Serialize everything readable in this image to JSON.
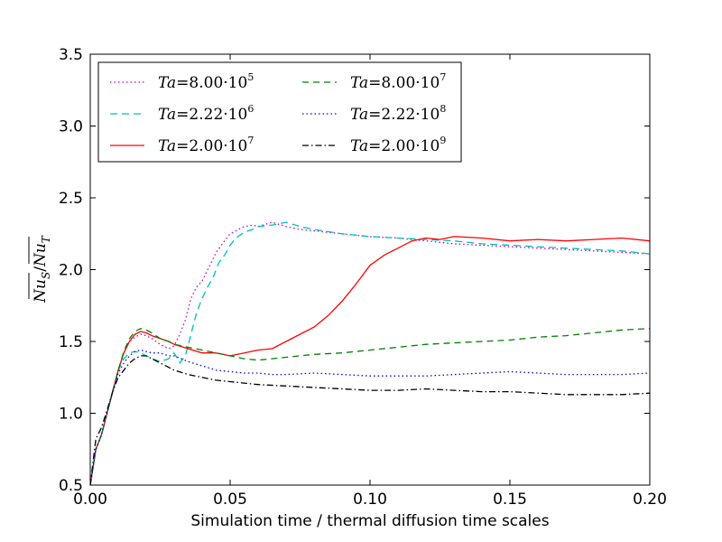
{
  "chart_data": {
    "type": "line",
    "title": "",
    "xlabel": "Simulation time / thermal diffusion time scales",
    "ylabel": "Nu_S / Nu_T",
    "ylabel_parts": {
      "num": "Nu",
      "num_sub": "S",
      "sep": "/",
      "den": "Nu",
      "den_sub": "T"
    },
    "xlim": [
      0.0,
      0.2
    ],
    "ylim": [
      0.5,
      3.5
    ],
    "xticks": [
      0.0,
      0.05,
      0.1,
      0.15,
      0.2
    ],
    "xtick_labels": [
      "0.00",
      "0.05",
      "0.10",
      "0.15",
      "0.20"
    ],
    "yticks": [
      0.5,
      1.0,
      1.5,
      2.0,
      2.5,
      3.0,
      3.5
    ],
    "ytick_labels": [
      "0.5",
      "1.0",
      "1.5",
      "2.0",
      "2.5",
      "3.0",
      "3.5"
    ],
    "grid": false,
    "legend_position": "upper-left",
    "series": [
      {
        "name": "Ta=8.00·10^5",
        "label_prefix": "Ta",
        "label_eq": "=",
        "label_mantissa": "8.00",
        "label_base": "·10",
        "label_exp": "5",
        "color": "#bf00bf",
        "dash": "1.5 3",
        "x": [
          0.0,
          0.002,
          0.004,
          0.006,
          0.008,
          0.01,
          0.012,
          0.014,
          0.016,
          0.018,
          0.02,
          0.022,
          0.025,
          0.028,
          0.03,
          0.032,
          0.034,
          0.036,
          0.038,
          0.04,
          0.042,
          0.045,
          0.048,
          0.05,
          0.052,
          0.055,
          0.058,
          0.06,
          0.065,
          0.07,
          0.075,
          0.08,
          0.09,
          0.1,
          0.11,
          0.12,
          0.13,
          0.14,
          0.15,
          0.16,
          0.17,
          0.18,
          0.19,
          0.2
        ],
        "y": [
          0.5,
          0.75,
          0.85,
          1.0,
          1.15,
          1.3,
          1.42,
          1.5,
          1.53,
          1.55,
          1.54,
          1.52,
          1.48,
          1.45,
          1.47,
          1.55,
          1.65,
          1.8,
          1.88,
          1.92,
          2.0,
          2.12,
          2.2,
          2.25,
          2.27,
          2.3,
          2.31,
          2.3,
          2.33,
          2.3,
          2.28,
          2.27,
          2.25,
          2.23,
          2.22,
          2.2,
          2.18,
          2.17,
          2.16,
          2.15,
          2.14,
          2.13,
          2.12,
          2.11
        ]
      },
      {
        "name": "Ta=2.22·10^6",
        "label_prefix": "Ta",
        "label_eq": "=",
        "label_mantissa": "2.22",
        "label_base": "·10",
        "label_exp": "6",
        "color": "#00bfbf",
        "dash": "8 5",
        "x": [
          0.0,
          0.002,
          0.004,
          0.006,
          0.008,
          0.01,
          0.012,
          0.014,
          0.016,
          0.018,
          0.02,
          0.022,
          0.025,
          0.028,
          0.03,
          0.032,
          0.034,
          0.036,
          0.038,
          0.04,
          0.042,
          0.044,
          0.046,
          0.048,
          0.05,
          0.052,
          0.055,
          0.058,
          0.06,
          0.065,
          0.07,
          0.075,
          0.08,
          0.09,
          0.1,
          0.11,
          0.12,
          0.13,
          0.14,
          0.15,
          0.16,
          0.17,
          0.18,
          0.19,
          0.2
        ],
        "y": [
          0.5,
          0.75,
          0.85,
          1.0,
          1.15,
          1.3,
          1.38,
          1.42,
          1.43,
          1.42,
          1.4,
          1.38,
          1.36,
          1.38,
          1.42,
          1.35,
          1.4,
          1.55,
          1.7,
          1.8,
          1.88,
          1.95,
          2.05,
          2.1,
          2.17,
          2.22,
          2.26,
          2.28,
          2.3,
          2.31,
          2.33,
          2.3,
          2.28,
          2.25,
          2.23,
          2.22,
          2.21,
          2.2,
          2.18,
          2.17,
          2.16,
          2.15,
          2.14,
          2.13,
          2.11
        ]
      },
      {
        "name": "Ta=2.00·10^7",
        "label_prefix": "Ta",
        "label_eq": "=",
        "label_mantissa": "2.00",
        "label_base": "·10",
        "label_exp": "7",
        "color": "#ff0000",
        "dash": "",
        "x": [
          0.0,
          0.002,
          0.004,
          0.006,
          0.008,
          0.01,
          0.012,
          0.014,
          0.016,
          0.018,
          0.02,
          0.022,
          0.025,
          0.028,
          0.03,
          0.035,
          0.04,
          0.045,
          0.05,
          0.055,
          0.06,
          0.065,
          0.07,
          0.075,
          0.08,
          0.085,
          0.09,
          0.095,
          0.1,
          0.105,
          0.11,
          0.115,
          0.12,
          0.125,
          0.13,
          0.14,
          0.15,
          0.16,
          0.17,
          0.18,
          0.19,
          0.2
        ],
        "y": [
          0.5,
          0.75,
          0.85,
          1.0,
          1.15,
          1.3,
          1.42,
          1.5,
          1.55,
          1.57,
          1.56,
          1.54,
          1.52,
          1.5,
          1.48,
          1.45,
          1.42,
          1.42,
          1.4,
          1.42,
          1.44,
          1.45,
          1.5,
          1.55,
          1.6,
          1.68,
          1.78,
          1.9,
          2.03,
          2.1,
          2.15,
          2.2,
          2.22,
          2.21,
          2.23,
          2.22,
          2.2,
          2.21,
          2.2,
          2.21,
          2.22,
          2.2
        ]
      },
      {
        "name": "Ta=8.00·10^7",
        "label_prefix": "Ta",
        "label_eq": "=",
        "label_mantissa": "8.00",
        "label_base": "·10",
        "label_exp": "7",
        "color": "#008000",
        "dash": "7 5",
        "x": [
          0.0,
          0.002,
          0.004,
          0.006,
          0.008,
          0.01,
          0.012,
          0.014,
          0.016,
          0.018,
          0.02,
          0.022,
          0.025,
          0.028,
          0.03,
          0.035,
          0.04,
          0.045,
          0.05,
          0.055,
          0.06,
          0.065,
          0.07,
          0.075,
          0.08,
          0.09,
          0.1,
          0.11,
          0.12,
          0.13,
          0.14,
          0.15,
          0.16,
          0.17,
          0.18,
          0.19,
          0.2
        ],
        "y": [
          0.5,
          0.75,
          0.85,
          1.0,
          1.15,
          1.3,
          1.43,
          1.52,
          1.57,
          1.59,
          1.58,
          1.56,
          1.52,
          1.5,
          1.48,
          1.46,
          1.44,
          1.42,
          1.4,
          1.38,
          1.37,
          1.38,
          1.39,
          1.4,
          1.41,
          1.42,
          1.44,
          1.46,
          1.48,
          1.49,
          1.5,
          1.51,
          1.53,
          1.54,
          1.56,
          1.58,
          1.59
        ]
      },
      {
        "name": "Ta=2.22·10^8",
        "label_prefix": "Ta",
        "label_eq": "=",
        "label_mantissa": "2.22",
        "label_base": "·10",
        "label_exp": "8",
        "color": "#0000ff",
        "dash": "1.5 3",
        "x": [
          0.0,
          0.002,
          0.004,
          0.006,
          0.008,
          0.01,
          0.012,
          0.014,
          0.016,
          0.018,
          0.02,
          0.022,
          0.025,
          0.028,
          0.03,
          0.035,
          0.04,
          0.045,
          0.05,
          0.055,
          0.06,
          0.065,
          0.07,
          0.08,
          0.09,
          0.1,
          0.11,
          0.12,
          0.13,
          0.14,
          0.15,
          0.16,
          0.17,
          0.18,
          0.19,
          0.2
        ],
        "y": [
          0.5,
          0.75,
          0.85,
          1.0,
          1.15,
          1.28,
          1.35,
          1.4,
          1.43,
          1.44,
          1.43,
          1.42,
          1.42,
          1.4,
          1.4,
          1.36,
          1.33,
          1.3,
          1.29,
          1.28,
          1.28,
          1.27,
          1.27,
          1.28,
          1.27,
          1.26,
          1.26,
          1.26,
          1.27,
          1.28,
          1.29,
          1.28,
          1.27,
          1.27,
          1.27,
          1.28
        ]
      },
      {
        "name": "Ta=2.00·10^9",
        "label_prefix": "Ta",
        "label_eq": "=",
        "label_mantissa": "2.00",
        "label_base": "·10",
        "label_exp": "9",
        "color": "#000000",
        "dash": "7 3 1.5 3",
        "x": [
          0.0,
          0.002,
          0.004,
          0.006,
          0.008,
          0.01,
          0.012,
          0.014,
          0.016,
          0.018,
          0.02,
          0.022,
          0.025,
          0.028,
          0.03,
          0.035,
          0.04,
          0.045,
          0.05,
          0.055,
          0.06,
          0.07,
          0.08,
          0.09,
          0.1,
          0.11,
          0.12,
          0.13,
          0.14,
          0.15,
          0.16,
          0.17,
          0.18,
          0.19,
          0.2
        ],
        "y": [
          0.5,
          0.82,
          0.9,
          1.02,
          1.15,
          1.25,
          1.3,
          1.35,
          1.38,
          1.4,
          1.4,
          1.38,
          1.35,
          1.32,
          1.3,
          1.27,
          1.25,
          1.23,
          1.22,
          1.21,
          1.2,
          1.19,
          1.18,
          1.17,
          1.16,
          1.16,
          1.17,
          1.16,
          1.15,
          1.15,
          1.14,
          1.13,
          1.13,
          1.13,
          1.14
        ]
      }
    ]
  }
}
